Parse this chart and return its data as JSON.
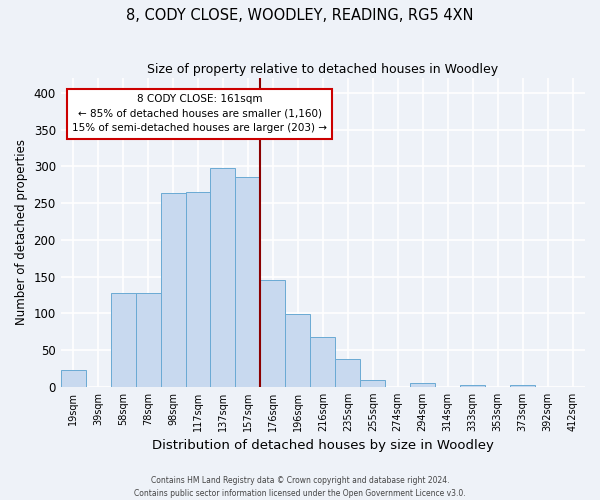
{
  "title": "8, CODY CLOSE, WOODLEY, READING, RG5 4XN",
  "subtitle": "Size of property relative to detached houses in Woodley",
  "xlabel": "Distribution of detached houses by size in Woodley",
  "ylabel": "Number of detached properties",
  "bar_labels": [
    "19sqm",
    "39sqm",
    "58sqm",
    "78sqm",
    "98sqm",
    "117sqm",
    "137sqm",
    "157sqm",
    "176sqm",
    "196sqm",
    "216sqm",
    "235sqm",
    "255sqm",
    "274sqm",
    "294sqm",
    "314sqm",
    "333sqm",
    "353sqm",
    "373sqm",
    "392sqm",
    "412sqm"
  ],
  "bar_heights": [
    23,
    0,
    128,
    128,
    263,
    265,
    298,
    285,
    145,
    99,
    68,
    38,
    9,
    0,
    5,
    0,
    3,
    0,
    3,
    0,
    0
  ],
  "bar_color": "#c8d9ef",
  "bar_edge_color": "#6aaad4",
  "vline_x": 7.5,
  "vline_color": "#8b0000",
  "ylim": [
    0,
    420
  ],
  "yticks": [
    0,
    50,
    100,
    150,
    200,
    250,
    300,
    350,
    400
  ],
  "annotation_title": "8 CODY CLOSE: 161sqm",
  "annotation_line1": "← 85% of detached houses are smaller (1,160)",
  "annotation_line2": "15% of semi-detached houses are larger (203) →",
  "annotation_box_color": "#ffffff",
  "annotation_box_edge": "#cc0000",
  "footer1": "Contains HM Land Registry data © Crown copyright and database right 2024.",
  "footer2": "Contains public sector information licensed under the Open Government Licence v3.0.",
  "background_color": "#eef2f8"
}
